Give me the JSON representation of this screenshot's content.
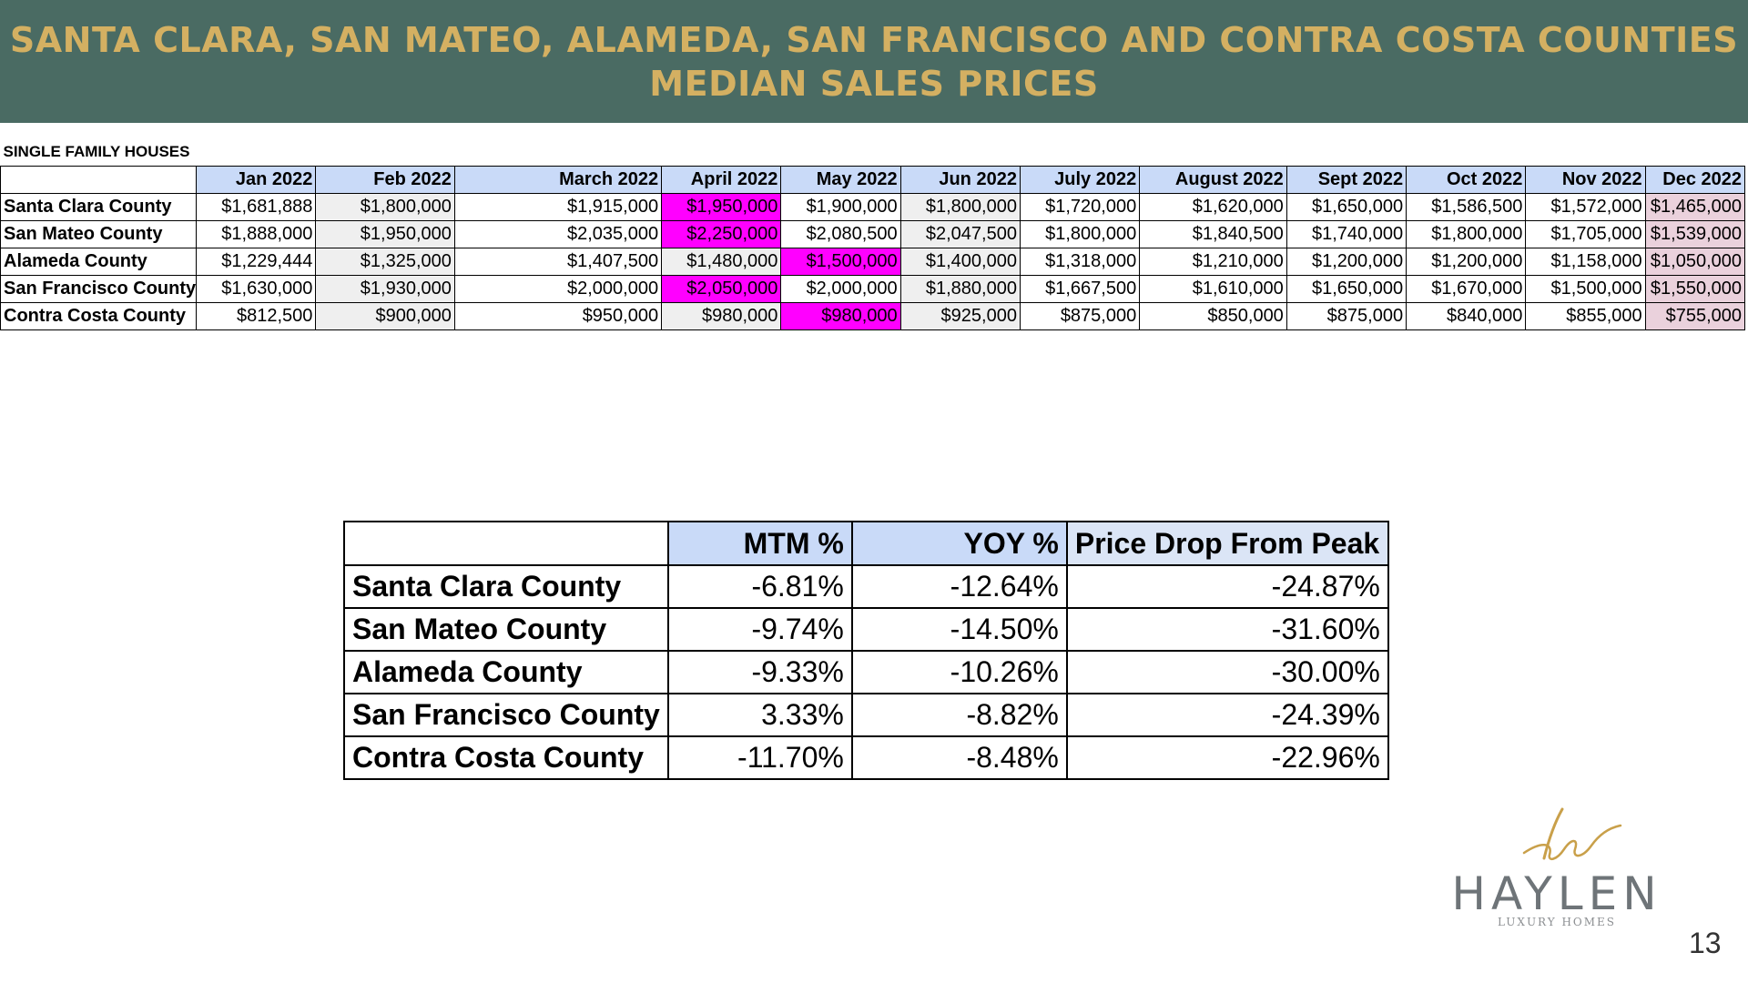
{
  "banner": {
    "line1": "SANTA CLARA, SAN MATEO, ALAMEDA, SAN FRANCISCO AND CONTRA COSTA COUNTIES",
    "line2": "MEDIAN SALES PRICES"
  },
  "monthly": {
    "section_label": "SINGLE FAMILY HOUSES",
    "months": [
      "Jan 2022",
      "Feb 2022",
      "March 2022",
      "April 2022",
      "May 2022",
      "Jun 2022",
      "July 2022",
      "August 2022",
      "Sept 2022",
      "Oct 2022",
      "Nov 2022",
      "Dec 2022"
    ],
    "rows": [
      {
        "county": "Santa Clara County",
        "values": [
          "$1,681,888",
          "$1,800,000",
          "$1,915,000",
          "$1,950,000",
          "$1,900,000",
          "$1,800,000",
          "$1,720,000",
          "$1,620,000",
          "$1,650,000",
          "$1,586,500",
          "$1,572,000",
          "$1,465,000"
        ]
      },
      {
        "county": "San Mateo County",
        "values": [
          "$1,888,000",
          "$1,950,000",
          "$2,035,000",
          "$2,250,000",
          "$2,080,500",
          "$2,047,500",
          "$1,800,000",
          "$1,840,500",
          "$1,740,000",
          "$1,800,000",
          "$1,705,000",
          "$1,539,000"
        ]
      },
      {
        "county": "Alameda County",
        "values": [
          "$1,229,444",
          "$1,325,000",
          "$1,407,500",
          "$1,480,000",
          "$1,500,000",
          "$1,400,000",
          "$1,318,000",
          "$1,210,000",
          "$1,200,000",
          "$1,200,000",
          "$1,158,000",
          "$1,050,000"
        ]
      },
      {
        "county": "San Francisco County",
        "values": [
          "$1,630,000",
          "$1,930,000",
          "$2,000,000",
          "$2,050,000",
          "$2,000,000",
          "$1,880,000",
          "$1,667,500",
          "$1,610,000",
          "$1,650,000",
          "$1,670,000",
          "$1,500,000",
          "$1,550,000"
        ]
      },
      {
        "county": "Contra Costa County",
        "values": [
          "$812,500",
          "$900,000",
          "$950,000",
          "$980,000",
          "$980,000",
          "$925,000",
          "$875,000",
          "$850,000",
          "$875,000",
          "$840,000",
          "$855,000",
          "$755,000"
        ]
      }
    ],
    "colors": {
      "header_blue": "#c9daf8",
      "peak_magenta": "#ff00ff",
      "december_pink": "#ead1dc",
      "alt_gray": "#efefef"
    },
    "peak_month_index": [
      3,
      3,
      4,
      3,
      4
    ]
  },
  "summary": {
    "headers": [
      "MTM %",
      "YOY %",
      "Price Drop From Peak"
    ],
    "rows": [
      {
        "county": "Santa Clara County",
        "mtm": "-6.81%",
        "yoy": "-12.64%",
        "drop": "-24.87%"
      },
      {
        "county": "San Mateo County",
        "mtm": "-9.74%",
        "yoy": "-14.50%",
        "drop": "-31.60%"
      },
      {
        "county": "Alameda County",
        "mtm": "-9.33%",
        "yoy": "-10.26%",
        "drop": "-30.00%"
      },
      {
        "county": "San Francisco County",
        "mtm": "3.33%",
        "yoy": "-8.82%",
        "drop": "-24.39%"
      },
      {
        "county": "Contra Costa County",
        "mtm": "-11.70%",
        "yoy": "-8.48%",
        "drop": "-22.96%"
      }
    ]
  },
  "logo": {
    "brand": "HAYLEN",
    "tagline": "LUXURY HOMES",
    "accent": "#c9a04a"
  },
  "page_number": "13"
}
